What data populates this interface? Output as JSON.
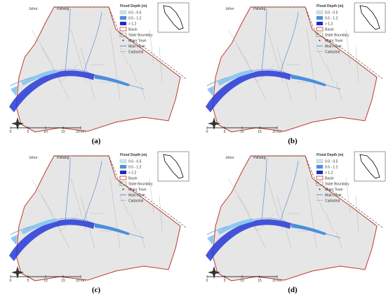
{
  "legend": {
    "title": "Flood Depth (m)",
    "items": [
      "0.0 - 0.5",
      "0.5 - 1.2",
      "> 1.2",
      "Basin",
      "State Boundary",
      "Major Town",
      "Main River",
      "Cadastral"
    ]
  },
  "map_labels": {
    "west": "Johor",
    "east": "Pahang"
  },
  "scale_bar": [
    "0",
    "5",
    "10",
    "15",
    "20 km"
  ],
  "panels": [
    {
      "label": "(a)"
    },
    {
      "label": "(b)"
    },
    {
      "label": "(c)"
    },
    {
      "label": "(d)"
    }
  ]
}
